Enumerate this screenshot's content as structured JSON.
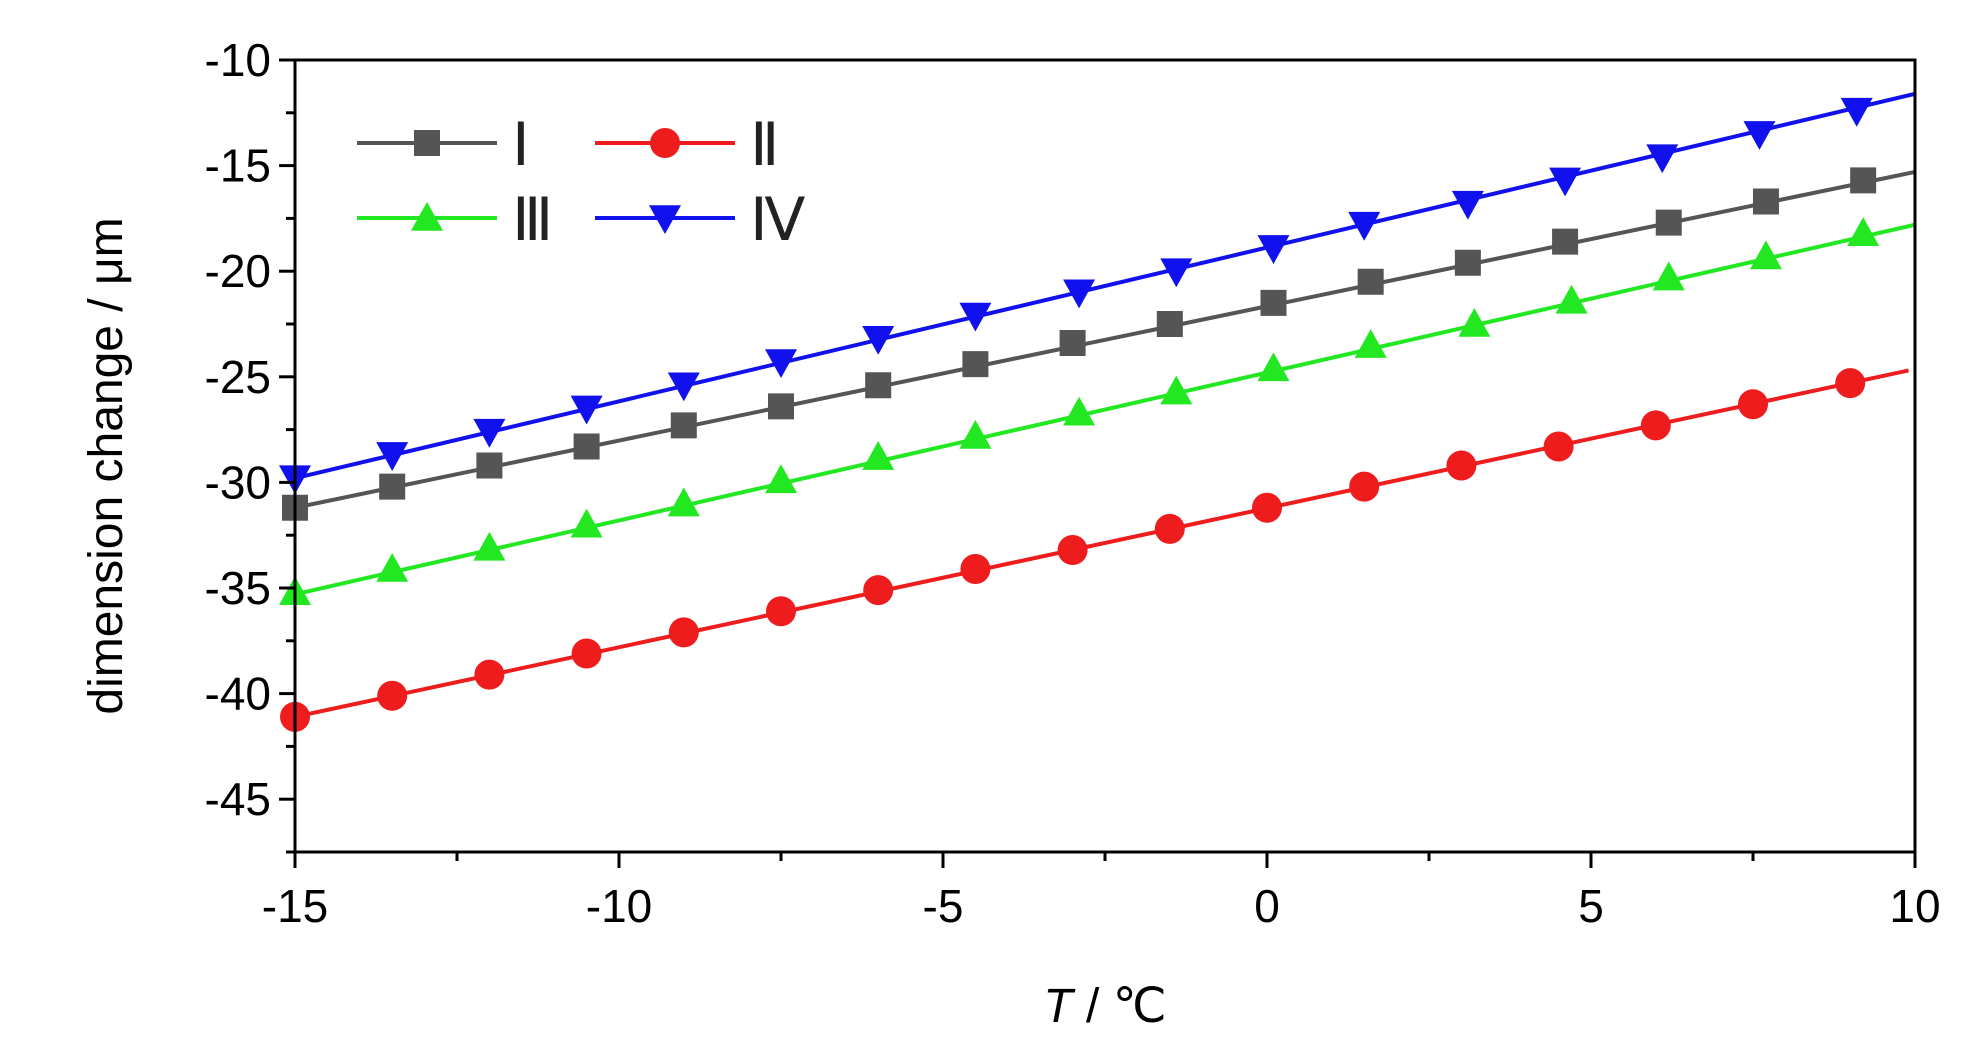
{
  "chart_data": {
    "type": "line",
    "title": "",
    "xlabel_italic": "T",
    "xlabel_rest": " / ℃",
    "ylabel": "dimension change / μm",
    "xlim": [
      -15,
      10
    ],
    "ylim": [
      -47.5,
      -10
    ],
    "x_ticks": [
      -15,
      -10,
      -5,
      0,
      5,
      10
    ],
    "x_tick_labels": [
      "-15",
      "-10",
      "-5",
      "0",
      "5",
      "10"
    ],
    "y_ticks": [
      -45,
      -40,
      -35,
      -30,
      -25,
      -20,
      -15,
      -10
    ],
    "y_tick_labels": [
      "-45",
      "-40",
      "-35",
      "-30",
      "-25",
      "-20",
      "-15",
      "-10"
    ],
    "legend_position": "top-left",
    "grid": false,
    "series": [
      {
        "name": "Ⅰ",
        "color": "#555555",
        "marker": "square",
        "line": [
          [
            -15,
            -31.2
          ],
          [
            10,
            -15.3
          ]
        ],
        "points": [
          [
            -15.0,
            -31.2
          ],
          [
            -13.5,
            -30.2
          ],
          [
            -12.0,
            -29.2
          ],
          [
            -10.5,
            -28.3
          ],
          [
            -9.0,
            -27.3
          ],
          [
            -7.5,
            -26.4
          ],
          [
            -6.0,
            -25.4
          ],
          [
            -4.5,
            -24.4
          ],
          [
            -3.0,
            -23.4
          ],
          [
            -1.5,
            -22.5
          ],
          [
            0.1,
            -21.5
          ],
          [
            1.6,
            -20.5
          ],
          [
            3.1,
            -19.6
          ],
          [
            4.6,
            -18.6
          ],
          [
            6.2,
            -17.7
          ],
          [
            7.7,
            -16.7
          ],
          [
            9.2,
            -15.7
          ]
        ]
      },
      {
        "name": "Ⅱ",
        "color": "#ee1c1c",
        "marker": "circle",
        "line": [
          [
            -15,
            -41.1
          ],
          [
            9.9,
            -24.7
          ]
        ],
        "points": [
          [
            -15.0,
            -41.1
          ],
          [
            -13.5,
            -40.1
          ],
          [
            -12.0,
            -39.1
          ],
          [
            -10.5,
            -38.1
          ],
          [
            -9.0,
            -37.1
          ],
          [
            -7.5,
            -36.1
          ],
          [
            -6.0,
            -35.1
          ],
          [
            -4.5,
            -34.1
          ],
          [
            -3.0,
            -33.2
          ],
          [
            -1.5,
            -32.2
          ],
          [
            0.0,
            -31.2
          ],
          [
            1.5,
            -30.2
          ],
          [
            3.0,
            -29.2
          ],
          [
            4.5,
            -28.3
          ],
          [
            6.0,
            -27.3
          ],
          [
            7.5,
            -26.3
          ],
          [
            9.0,
            -25.3
          ]
        ]
      },
      {
        "name": "Ⅲ",
        "color": "#22e822",
        "marker": "triangle-up",
        "line": [
          [
            -15,
            -35.3
          ],
          [
            10,
            -17.8
          ]
        ],
        "points": [
          [
            -15.0,
            -35.2
          ],
          [
            -13.5,
            -34.1
          ],
          [
            -12.0,
            -33.1
          ],
          [
            -10.5,
            -32.0
          ],
          [
            -9.0,
            -31.0
          ],
          [
            -7.5,
            -29.9
          ],
          [
            -6.0,
            -28.8
          ],
          [
            -4.5,
            -27.8
          ],
          [
            -2.9,
            -26.7
          ],
          [
            -1.4,
            -25.7
          ],
          [
            0.1,
            -24.6
          ],
          [
            1.6,
            -23.5
          ],
          [
            3.2,
            -22.5
          ],
          [
            4.7,
            -21.4
          ],
          [
            6.2,
            -20.3
          ],
          [
            7.7,
            -19.3
          ],
          [
            9.2,
            -18.2
          ]
        ]
      },
      {
        "name": "Ⅳ",
        "color": "#1111ee",
        "marker": "triangle-down",
        "line": [
          [
            -15,
            -29.8
          ],
          [
            10,
            -11.6
          ]
        ],
        "points": [
          [
            -15.0,
            -29.8
          ],
          [
            -13.5,
            -28.7
          ],
          [
            -12.0,
            -27.6
          ],
          [
            -10.5,
            -26.5
          ],
          [
            -9.0,
            -25.4
          ],
          [
            -7.5,
            -24.3
          ],
          [
            -6.0,
            -23.2
          ],
          [
            -4.5,
            -22.1
          ],
          [
            -2.9,
            -21.0
          ],
          [
            -1.4,
            -20.0
          ],
          [
            0.1,
            -18.9
          ],
          [
            1.5,
            -17.8
          ],
          [
            3.1,
            -16.8
          ],
          [
            4.6,
            -15.7
          ],
          [
            6.1,
            -14.6
          ],
          [
            7.6,
            -13.5
          ],
          [
            9.1,
            -12.4
          ]
        ]
      }
    ]
  }
}
